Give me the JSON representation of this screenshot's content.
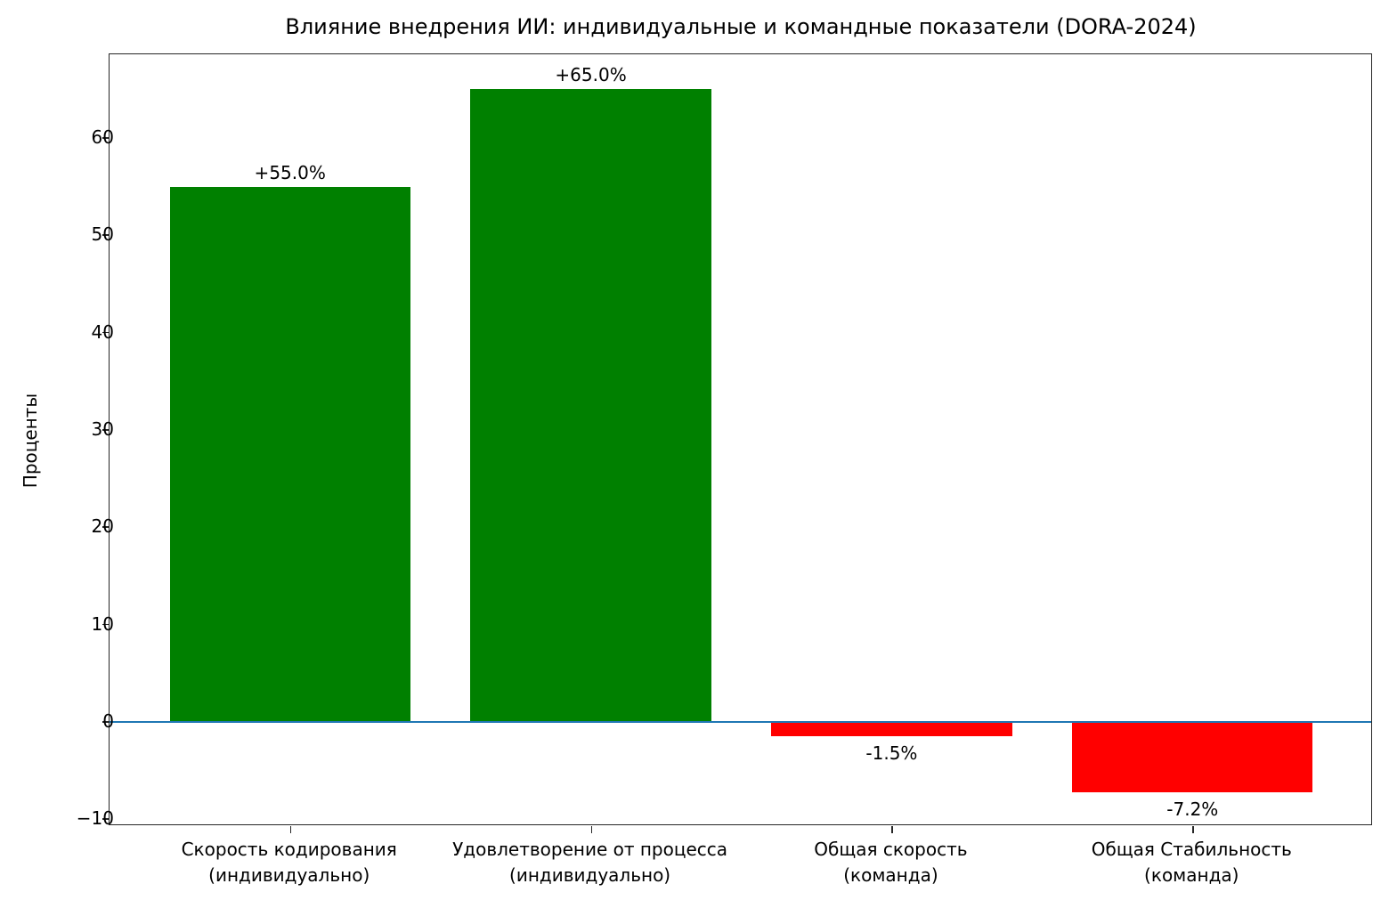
{
  "chart_data": {
    "type": "bar",
    "title": "Влияние внедрения ИИ: индивидуальные и командные показатели (DORA-2024)",
    "xlabel": "",
    "ylabel": "Проценты",
    "categories": [
      "Скорость кодирования\n(индивидуально)",
      "Удовлетворение от процесса\n(индивидуально)",
      "Общая скорость\n(команда)",
      "Общая Стабильность\n(команда)"
    ],
    "category_lines": [
      [
        "Скорость кодирования",
        "(индивидуально)"
      ],
      [
        "Удовлетворение от процесса",
        "(индивидуально)"
      ],
      [
        "Общая скорость",
        "(команда)"
      ],
      [
        "Общая Стабильность",
        "(команда)"
      ]
    ],
    "values": [
      55.0,
      65.0,
      -1.5,
      -7.2
    ],
    "value_labels": [
      "+55.0%",
      "+65.0%",
      "-1.5%",
      "-7.2%"
    ],
    "colors": [
      "#008000",
      "#008000",
      "#ff0000",
      "#ff0000"
    ],
    "ylim": [
      -10.7,
      68.6
    ],
    "yticks": [
      -10,
      0,
      10,
      20,
      30,
      40,
      50,
      60
    ],
    "ytick_labels": [
      "−10",
      "0",
      "10",
      "20",
      "30",
      "40",
      "50",
      "60"
    ],
    "reference_line": {
      "y": 0,
      "color": "#1f77b4"
    },
    "grid": false,
    "legend": null
  }
}
